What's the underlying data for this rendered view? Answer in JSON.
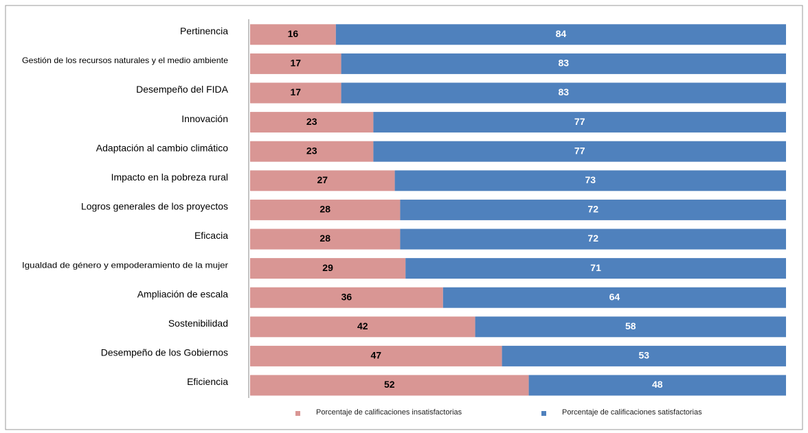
{
  "chart_data": {
    "type": "stacked-bar-horizontal",
    "categories": [
      "Pertinencia",
      "Gestión de los recursos naturales y el medio ambiente",
      "Desempeño del FIDA",
      "Innovación",
      "Adaptación al cambio climático",
      "Impacto en la pobreza rural",
      "Logros generales de los proyectos",
      "Eficacia",
      "Igualdad de género y empoderamiento de la mujer",
      "Ampliación de escala",
      "Sostenibilidad",
      "Desempeño de los Gobiernos",
      "Eficiencia"
    ],
    "series": [
      {
        "name": "Porcentaje de calificaciones insatisfactorias",
        "color": "#d99694",
        "values": [
          16,
          17,
          17,
          23,
          23,
          27,
          28,
          28,
          29,
          36,
          42,
          47,
          52
        ]
      },
      {
        "name": "Porcentaje de calificaciones satisfactorias",
        "color": "#4f81bd",
        "values": [
          84,
          83,
          83,
          77,
          77,
          73,
          72,
          72,
          71,
          64,
          58,
          53,
          48
        ]
      }
    ],
    "xlim": [
      0,
      100
    ]
  }
}
